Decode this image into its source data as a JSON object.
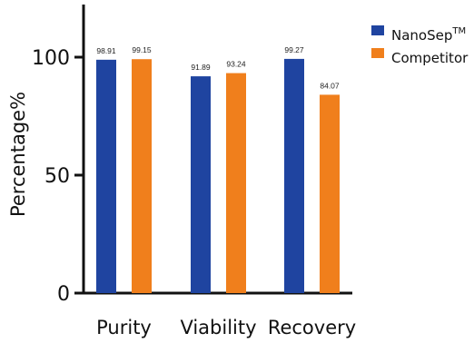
{
  "chart_data": {
    "type": "bar",
    "categories": [
      "Purity",
      "Viability",
      "Recovery"
    ],
    "series": [
      {
        "name": "NanoSep",
        "name_sup": "TM",
        "color": "#1f44a0",
        "values": [
          98.91,
          91.89,
          99.27
        ]
      },
      {
        "name": "Competitor",
        "name_sup": "",
        "color": "#f07f1c",
        "values": [
          99.15,
          93.24,
          84.07
        ]
      }
    ],
    "ylabel": "Percentage%",
    "xlabel": "",
    "ylim": [
      0,
      100
    ],
    "yticks": [
      0,
      50,
      100
    ],
    "legend_position": "top-right",
    "grid": false
  }
}
